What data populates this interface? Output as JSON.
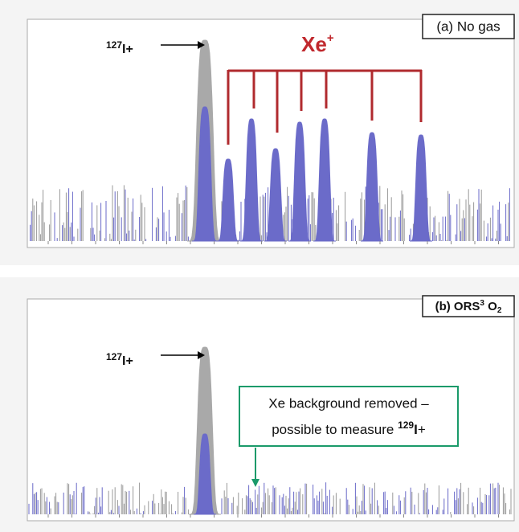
{
  "panels": [
    {
      "label": "(a) No gas",
      "ion": {
        "mass": "127",
        "element": "I",
        "charge": "+"
      },
      "xe_label": {
        "element": "Xe",
        "charge": "+"
      }
    },
    {
      "label": {
        "prefix": "(b) ORS",
        "sup": "3",
        "mid": " O",
        "sub": "2"
      },
      "ion": {
        "mass": "127",
        "element": "I",
        "charge": "+"
      },
      "note": {
        "line1": "Xe background removed –",
        "line2": "possible to measure ",
        "mass": "129",
        "element": "I",
        "charge": "+"
      }
    }
  ]
}
